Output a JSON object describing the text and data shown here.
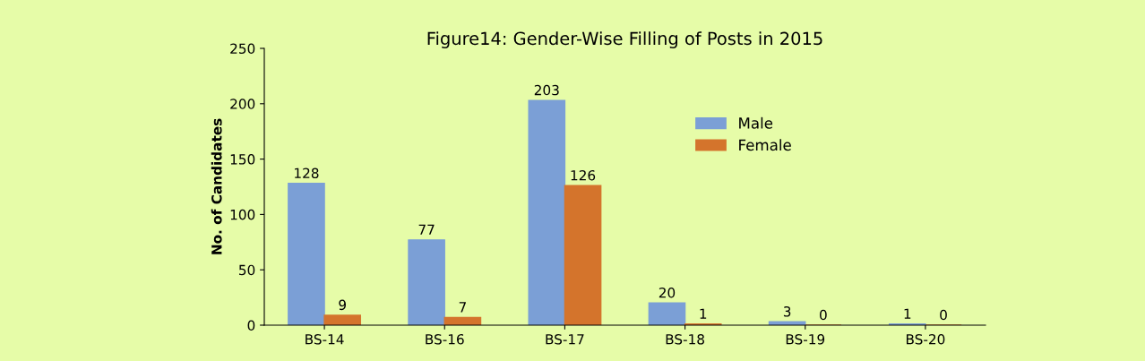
{
  "chart_data": {
    "type": "bar",
    "title": "Figure14: Gender-Wise Filling of Posts in 2015",
    "ylabel": "No. of Candidates",
    "categories": [
      "BS-14",
      "BS-16",
      "BS-17",
      "BS-18",
      "BS-19",
      "BS-20"
    ],
    "series": [
      {
        "name": "Male",
        "color": "#7b9fd6",
        "values": [
          128,
          77,
          203,
          20,
          3,
          1
        ]
      },
      {
        "name": "Female",
        "color": "#d4742c",
        "values": [
          9,
          7,
          126,
          1,
          0,
          0
        ]
      }
    ],
    "ylim": [
      0,
      250
    ],
    "yticks": [
      0,
      50,
      100,
      150,
      200,
      250
    ],
    "grid": false,
    "legend": "top right",
    "data_labels": true
  }
}
